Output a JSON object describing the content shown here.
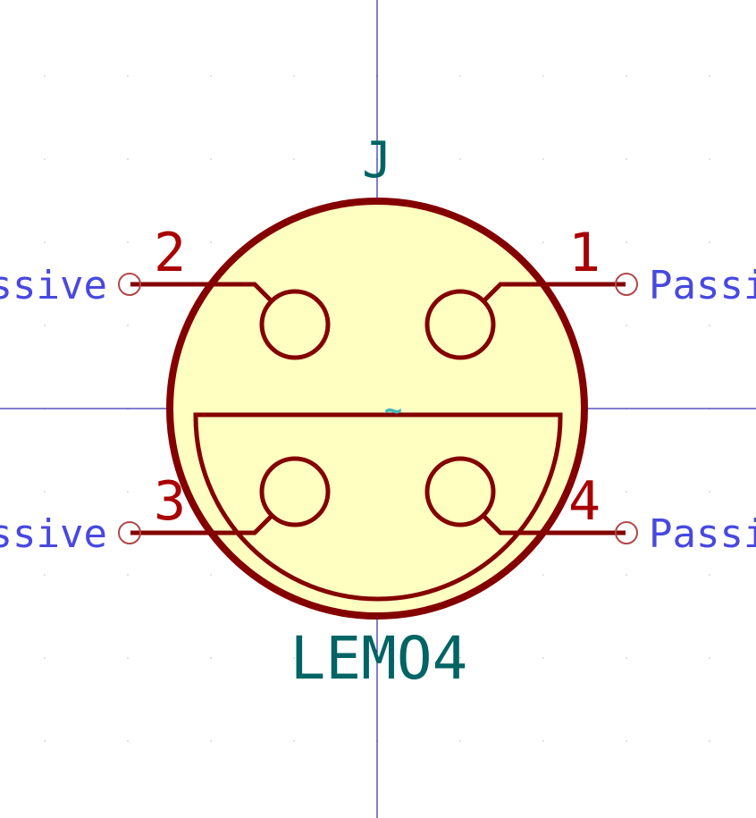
{
  "symbol": {
    "reference": "J",
    "value": "LEMO4",
    "unit_marker": "~"
  },
  "pins": [
    {
      "number": "1",
      "electrical_type": "Passive"
    },
    {
      "number": "2",
      "electrical_type": "Passive"
    },
    {
      "number": "3",
      "electrical_type": "Passive"
    },
    {
      "number": "4",
      "electrical_type": "Passive"
    }
  ],
  "colors": {
    "background": "#ffffff",
    "body_fill": "#ffffc2",
    "body_outline": "#840000",
    "pin_line": "#840000",
    "pin_number": "#a90000",
    "pin_type": "#4848e0",
    "field_text": "#006464",
    "unit_marker": "#48b8b8",
    "axis": "#0000a0",
    "grid_dot": "#d8d8d8"
  }
}
